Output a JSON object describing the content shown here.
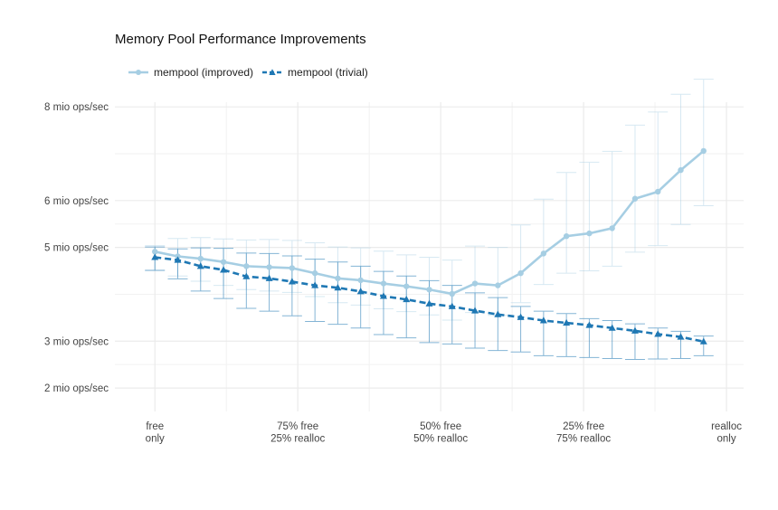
{
  "chart_data": {
    "type": "line",
    "title": "Memory Pool Performance Improvements",
    "legend_position": "top-left",
    "grid": true,
    "x": [
      0.0,
      0.04,
      0.08,
      0.12,
      0.16,
      0.2,
      0.24,
      0.28,
      0.32,
      0.36,
      0.4,
      0.44,
      0.48,
      0.52,
      0.56,
      0.6,
      0.64,
      0.68,
      0.72,
      0.76,
      0.8,
      0.84,
      0.88,
      0.92,
      0.96
    ],
    "xlim": [
      -0.07,
      1.03
    ],
    "x_ticks": [
      {
        "value": 0.0,
        "lines": [
          "free",
          "only"
        ]
      },
      {
        "value": 0.25,
        "lines": [
          "75% free",
          "25% realloc"
        ]
      },
      {
        "value": 0.5,
        "lines": [
          "50% free",
          "50% realloc"
        ]
      },
      {
        "value": 0.75,
        "lines": [
          "25% free",
          "75% realloc"
        ]
      },
      {
        "value": 1.0,
        "lines": [
          "realloc",
          "only"
        ]
      }
    ],
    "y_ticks": [
      {
        "value": 2,
        "label": "2 mio ops/sec"
      },
      {
        "value": 3,
        "label": "3 mio ops/sec"
      },
      {
        "value": 5,
        "label": "5 mio ops/sec"
      },
      {
        "value": 6,
        "label": "6 mio ops/sec"
      },
      {
        "value": 8,
        "label": "8 mio ops/sec"
      }
    ],
    "ylim": [
      1.5,
      8.1
    ],
    "series": [
      {
        "name": "mempool (improved)",
        "color": "#a6cee3",
        "line_style": "solid",
        "marker": "circle",
        "values": [
          4.91,
          4.81,
          4.76,
          4.69,
          4.6,
          4.58,
          4.56,
          4.45,
          4.34,
          4.3,
          4.23,
          4.17,
          4.1,
          4.01,
          4.23,
          4.19,
          4.45,
          4.87,
          5.24,
          5.3,
          5.41,
          6.04,
          6.19,
          6.65,
          7.06
        ],
        "error_low": [
          4.51,
          4.39,
          4.28,
          4.19,
          4.1,
          4.07,
          4.04,
          3.95,
          3.82,
          3.77,
          3.69,
          3.63,
          3.56,
          3.45,
          3.61,
          3.55,
          3.82,
          4.21,
          4.45,
          4.5,
          4.6,
          4.9,
          5.04,
          5.49,
          5.89
        ],
        "error_high": [
          5.04,
          5.19,
          5.21,
          5.18,
          5.16,
          5.17,
          5.15,
          5.1,
          5.01,
          4.99,
          4.92,
          4.84,
          4.79,
          4.73,
          5.03,
          5.0,
          5.48,
          6.03,
          6.6,
          6.82,
          7.05,
          7.61,
          7.89,
          8.27,
          8.59
        ]
      },
      {
        "name": "mempool (trivial)",
        "color": "#1f78b4",
        "line_style": "dashed",
        "marker": "triangle",
        "values": [
          4.79,
          4.73,
          4.6,
          4.52,
          4.38,
          4.34,
          4.27,
          4.19,
          4.14,
          4.06,
          3.96,
          3.89,
          3.8,
          3.74,
          3.65,
          3.57,
          3.51,
          3.44,
          3.39,
          3.34,
          3.28,
          3.22,
          3.15,
          3.09,
          2.99
        ],
        "error_low": [
          4.51,
          4.33,
          4.07,
          3.91,
          3.7,
          3.64,
          3.54,
          3.42,
          3.36,
          3.28,
          3.14,
          3.07,
          2.97,
          2.94,
          2.85,
          2.8,
          2.77,
          2.69,
          2.67,
          2.65,
          2.63,
          2.61,
          2.62,
          2.63,
          2.69
        ],
        "error_high": [
          5.01,
          4.97,
          4.99,
          4.98,
          4.88,
          4.87,
          4.82,
          4.75,
          4.69,
          4.6,
          4.49,
          4.39,
          4.29,
          4.19,
          4.03,
          3.93,
          3.74,
          3.64,
          3.59,
          3.48,
          3.44,
          3.37,
          3.28,
          3.21,
          3.11
        ]
      }
    ]
  }
}
